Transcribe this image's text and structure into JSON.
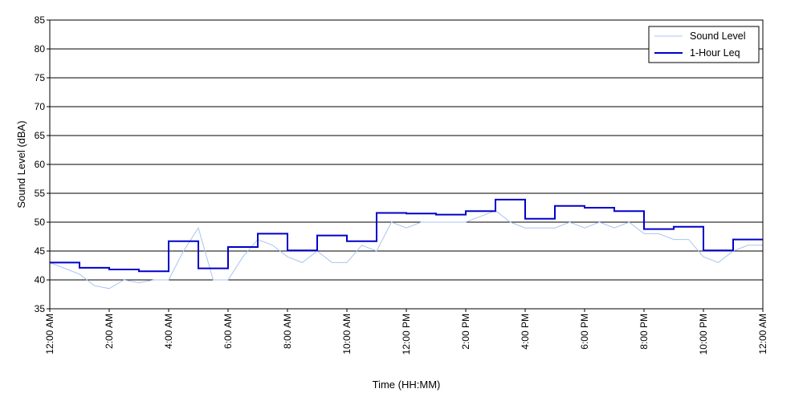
{
  "chart_data": {
    "type": "line",
    "xlabel": "Time (HH:MM)",
    "ylabel": "Sound Level (dBA)",
    "ylim": [
      35,
      85
    ],
    "xlim_hours": [
      0,
      24
    ],
    "y_ticks": [
      35,
      40,
      45,
      50,
      55,
      60,
      65,
      70,
      75,
      80,
      85
    ],
    "x_tick_hours": [
      0,
      2,
      4,
      6,
      8,
      10,
      12,
      14,
      16,
      18,
      20,
      22,
      24
    ],
    "x_tick_labels": [
      "12:00 AM",
      "2:00 AM",
      "4:00 AM",
      "6:00 AM",
      "8:00 AM",
      "10:00 AM",
      "12:00 PM",
      "2:00 PM",
      "4:00 PM",
      "6:00 PM",
      "8:00 PM",
      "10:00 PM",
      "12:00 AM"
    ],
    "grid": "horizontal",
    "legend_position": "top-right",
    "series": [
      {
        "name": "Sound Level",
        "color": "#a9c4f2",
        "hours": [
          0,
          0.5,
          1,
          1.5,
          2,
          2.5,
          3,
          3.5,
          4,
          4.5,
          5,
          5.5,
          6,
          6.5,
          7,
          7.5,
          8,
          8.5,
          9,
          9.5,
          10,
          10.5,
          11,
          11.5,
          12,
          12.5,
          13,
          13.5,
          14,
          14.5,
          15,
          15.5,
          16,
          16.5,
          17,
          17.5,
          18,
          18.5,
          19,
          19.5,
          20,
          20.5,
          21,
          21.5,
          22,
          22.5,
          23,
          23.5,
          24
        ],
        "values": [
          43,
          42,
          41,
          39,
          38.5,
          40,
          39.5,
          40,
          40,
          45,
          49,
          40,
          40,
          44,
          47,
          46,
          44,
          43,
          45,
          43,
          43,
          46,
          45,
          50,
          49,
          50,
          50,
          50,
          50,
          51,
          52,
          50,
          49,
          49,
          49,
          50,
          49,
          50,
          49,
          50,
          48,
          48,
          47,
          47,
          44,
          43,
          45,
          46,
          46
        ]
      },
      {
        "name": "1-Hour Leq",
        "color": "#0000cc",
        "type": "step",
        "hour_starts": [
          0,
          1,
          2,
          3,
          4,
          5,
          6,
          7,
          8,
          9,
          10,
          11,
          12,
          13,
          14,
          15,
          16,
          17,
          18,
          19,
          20,
          21,
          22,
          23
        ],
        "values": [
          43,
          42.1,
          41.8,
          41.5,
          46.7,
          42,
          45.7,
          48,
          45.1,
          47.7,
          46.7,
          51.6,
          51.5,
          51.3,
          51.9,
          53.9,
          50.6,
          52.8,
          52.5,
          51.9,
          48.8,
          49.2,
          45.1,
          47
        ]
      }
    ]
  }
}
